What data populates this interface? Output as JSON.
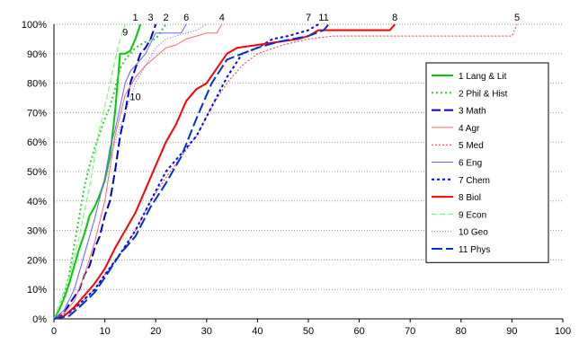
{
  "chart_data": {
    "type": "line",
    "title": "",
    "xlabel": "",
    "ylabel": "",
    "xlim": [
      0,
      100
    ],
    "ylim": [
      0,
      100
    ],
    "x_ticks": [
      "0",
      "10",
      "20",
      "30",
      "40",
      "50",
      "60",
      "70",
      "80",
      "90",
      "100"
    ],
    "y_ticks": [
      "0%",
      "10%",
      "20%",
      "30%",
      "40%",
      "50%",
      "60%",
      "70%",
      "80%",
      "90%",
      "100%"
    ],
    "grid": "horizontal dotted",
    "legend_position": "right",
    "series": [
      {
        "name": "1 Lang & Lit",
        "color": "#00cc00",
        "dash": "solid",
        "width": 2,
        "points": [
          [
            0,
            0
          ],
          [
            1,
            3
          ],
          [
            2,
            7
          ],
          [
            3,
            12
          ],
          [
            4,
            18
          ],
          [
            5,
            24
          ],
          [
            6,
            29
          ],
          [
            7,
            35
          ],
          [
            8,
            38
          ],
          [
            9,
            42
          ],
          [
            10,
            47
          ],
          [
            11,
            55
          ],
          [
            12,
            70
          ],
          [
            13,
            90
          ],
          [
            14,
            90
          ],
          [
            15,
            91
          ],
          [
            16,
            95
          ],
          [
            17,
            100
          ]
        ]
      },
      {
        "name": "2 Phil & Hist",
        "color": "#33cc33",
        "dash": "2,3",
        "width": 2,
        "points": [
          [
            0,
            0
          ],
          [
            1,
            3
          ],
          [
            2,
            8
          ],
          [
            3,
            15
          ],
          [
            4,
            25
          ],
          [
            5,
            35
          ],
          [
            6,
            45
          ],
          [
            7,
            52
          ],
          [
            8,
            58
          ],
          [
            9,
            63
          ],
          [
            10,
            68
          ],
          [
            11,
            72
          ],
          [
            12,
            78
          ],
          [
            13,
            85
          ],
          [
            14,
            88
          ],
          [
            15,
            90
          ],
          [
            16,
            92
          ],
          [
            18,
            94
          ],
          [
            20,
            95
          ],
          [
            22,
            100
          ]
        ]
      },
      {
        "name": "3 Math",
        "color": "#0000cc",
        "dash": "10,4",
        "width": 2,
        "points": [
          [
            0,
            0
          ],
          [
            2,
            2
          ],
          [
            3,
            5
          ],
          [
            5,
            10
          ],
          [
            6,
            15
          ],
          [
            7,
            18
          ],
          [
            8,
            24
          ],
          [
            9,
            28
          ],
          [
            10,
            35
          ],
          [
            11,
            40
          ],
          [
            12,
            50
          ],
          [
            13,
            62
          ],
          [
            14,
            70
          ],
          [
            15,
            80
          ],
          [
            16,
            85
          ],
          [
            17,
            90
          ],
          [
            18,
            92
          ],
          [
            19,
            95
          ],
          [
            20,
            100
          ]
        ]
      },
      {
        "name": "4 Agr",
        "color": "#ff6666",
        "dash": "solid",
        "width": 1,
        "points": [
          [
            0,
            0
          ],
          [
            2,
            2
          ],
          [
            4,
            6
          ],
          [
            6,
            15
          ],
          [
            8,
            26
          ],
          [
            10,
            40
          ],
          [
            12,
            62
          ],
          [
            14,
            76
          ],
          [
            16,
            82
          ],
          [
            18,
            86
          ],
          [
            20,
            89
          ],
          [
            22,
            92
          ],
          [
            24,
            93
          ],
          [
            26,
            95
          ],
          [
            28,
            96
          ],
          [
            30,
            97
          ],
          [
            32,
            97
          ],
          [
            33,
            100
          ]
        ]
      },
      {
        "name": "5 Med",
        "color": "#ff3333",
        "dash": "2,2",
        "width": 1,
        "points": [
          [
            0,
            0
          ],
          [
            3,
            2
          ],
          [
            5,
            5
          ],
          [
            8,
            10
          ],
          [
            10,
            15
          ],
          [
            13,
            22
          ],
          [
            16,
            30
          ],
          [
            19,
            40
          ],
          [
            22,
            48
          ],
          [
            25,
            55
          ],
          [
            28,
            62
          ],
          [
            31,
            72
          ],
          [
            34,
            80
          ],
          [
            37,
            86
          ],
          [
            40,
            90
          ],
          [
            45,
            93
          ],
          [
            50,
            95
          ],
          [
            55,
            96
          ],
          [
            57,
            96
          ],
          [
            90,
            96
          ],
          [
            91,
            100
          ]
        ]
      },
      {
        "name": "6 Eng",
        "color": "#6666ff",
        "dash": "solid",
        "width": 1,
        "points": [
          [
            0,
            0
          ],
          [
            2,
            3
          ],
          [
            4,
            10
          ],
          [
            6,
            22
          ],
          [
            8,
            34
          ],
          [
            10,
            48
          ],
          [
            11,
            58
          ],
          [
            12,
            64
          ],
          [
            13,
            72
          ],
          [
            14,
            80
          ],
          [
            15,
            84
          ],
          [
            16,
            86
          ],
          [
            18,
            90
          ],
          [
            20,
            97
          ],
          [
            22,
            97
          ],
          [
            24,
            97
          ],
          [
            25,
            97
          ],
          [
            26,
            100
          ]
        ]
      },
      {
        "name": "7 Chem",
        "color": "#0000ff",
        "dash": "3,3",
        "width": 2,
        "points": [
          [
            0,
            0
          ],
          [
            3,
            2
          ],
          [
            5,
            5
          ],
          [
            8,
            10
          ],
          [
            10,
            15
          ],
          [
            13,
            22
          ],
          [
            16,
            30
          ],
          [
            19,
            40
          ],
          [
            22,
            50
          ],
          [
            25,
            56
          ],
          [
            28,
            62
          ],
          [
            31,
            72
          ],
          [
            34,
            82
          ],
          [
            37,
            90
          ],
          [
            40,
            92
          ],
          [
            43,
            95
          ],
          [
            46,
            96
          ],
          [
            48,
            97
          ],
          [
            50,
            98
          ],
          [
            52,
            100
          ]
        ]
      },
      {
        "name": "8 Biol",
        "color": "#ff0000",
        "dash": "solid",
        "width": 2,
        "points": [
          [
            0,
            0
          ],
          [
            2,
            1
          ],
          [
            4,
            4
          ],
          [
            6,
            8
          ],
          [
            8,
            12
          ],
          [
            10,
            17
          ],
          [
            12,
            24
          ],
          [
            14,
            30
          ],
          [
            16,
            36
          ],
          [
            18,
            44
          ],
          [
            20,
            52
          ],
          [
            22,
            60
          ],
          [
            24,
            66
          ],
          [
            26,
            74
          ],
          [
            28,
            78
          ],
          [
            30,
            80
          ],
          [
            32,
            85
          ],
          [
            34,
            90
          ],
          [
            36,
            92
          ],
          [
            40,
            93
          ],
          [
            44,
            94
          ],
          [
            48,
            95
          ],
          [
            50,
            96
          ],
          [
            52,
            98
          ],
          [
            60,
            98
          ],
          [
            66,
            98
          ],
          [
            67,
            100
          ]
        ]
      },
      {
        "name": "9 Econ",
        "color": "#66ff66",
        "dash": "6,3",
        "width": 1,
        "points": [
          [
            0,
            0
          ],
          [
            1,
            5
          ],
          [
            3,
            14
          ],
          [
            5,
            28
          ],
          [
            7,
            45
          ],
          [
            8,
            55
          ],
          [
            9,
            65
          ],
          [
            10,
            72
          ],
          [
            11,
            80
          ],
          [
            12,
            88
          ],
          [
            13,
            95
          ],
          [
            14,
            100
          ]
        ]
      },
      {
        "name": "10 Geo",
        "color": "#6666ff",
        "dash": "1,2",
        "width": 1,
        "points": [
          [
            0,
            0
          ],
          [
            2,
            3
          ],
          [
            4,
            10
          ],
          [
            6,
            22
          ],
          [
            8,
            34
          ],
          [
            10,
            48
          ],
          [
            12,
            60
          ],
          [
            14,
            70
          ],
          [
            16,
            80
          ],
          [
            18,
            86
          ],
          [
            20,
            92
          ],
          [
            22,
            95
          ],
          [
            24,
            96
          ],
          [
            26,
            97
          ],
          [
            28,
            98
          ],
          [
            30,
            100
          ]
        ]
      },
      {
        "name": "11 Phys",
        "color": "#0033cc",
        "dash": "12,4",
        "width": 2,
        "points": [
          [
            0,
            0
          ],
          [
            3,
            1
          ],
          [
            5,
            4
          ],
          [
            8,
            9
          ],
          [
            10,
            14
          ],
          [
            13,
            22
          ],
          [
            16,
            28
          ],
          [
            19,
            38
          ],
          [
            22,
            46
          ],
          [
            25,
            55
          ],
          [
            28,
            68
          ],
          [
            31,
            80
          ],
          [
            34,
            88
          ],
          [
            37,
            90
          ],
          [
            40,
            92
          ],
          [
            44,
            94
          ],
          [
            47,
            95
          ],
          [
            50,
            96
          ],
          [
            53,
            98
          ],
          [
            54,
            100
          ]
        ]
      }
    ],
    "annotations": [
      {
        "text": "1",
        "x": 16,
        "y": 100
      },
      {
        "text": "3",
        "x": 19,
        "y": 100
      },
      {
        "text": "2",
        "x": 22,
        "y": 100
      },
      {
        "text": "6",
        "x": 26,
        "y": 100
      },
      {
        "text": "4",
        "x": 33,
        "y": 100
      },
      {
        "text": "7",
        "x": 50,
        "y": 100
      },
      {
        "text": "11",
        "x": 53,
        "y": 100
      },
      {
        "text": "8",
        "x": 67,
        "y": 100
      },
      {
        "text": "5",
        "x": 91,
        "y": 100
      },
      {
        "text": "9",
        "x": 14,
        "y": 95
      },
      {
        "text": "10",
        "x": 16,
        "y": 73
      }
    ]
  }
}
